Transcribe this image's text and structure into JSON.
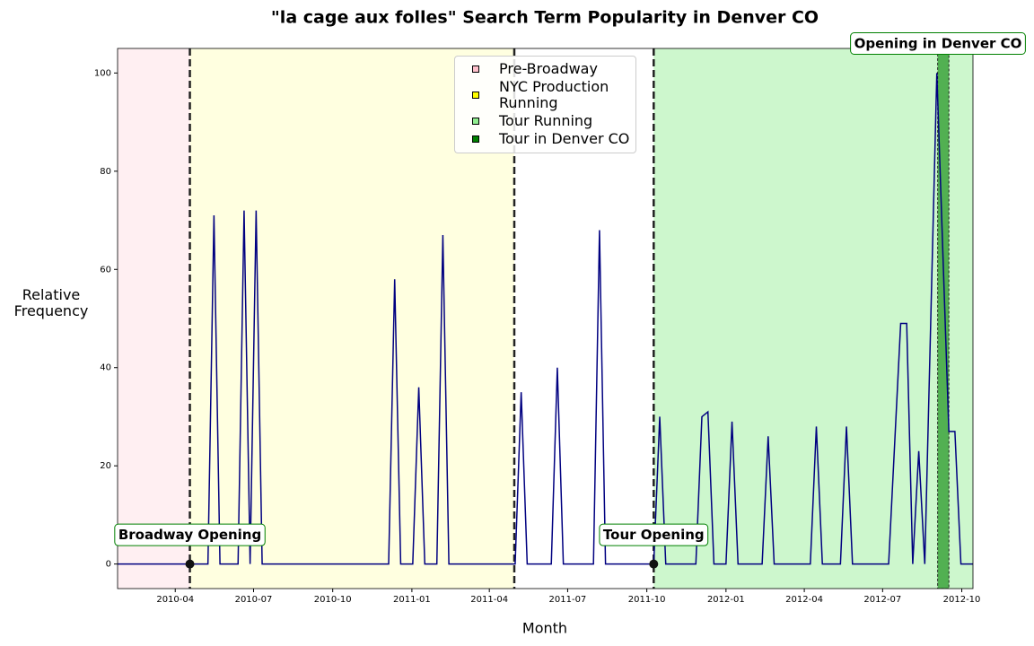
{
  "chart_data": {
    "type": "line",
    "title": "\"la cage aux folles\" Search Term Popularity in Denver CO",
    "x_label": "Month",
    "y_label": "Relative Frequency",
    "x": [
      "2010-01-24",
      "2010-05-09",
      "2010-05-16",
      "2010-05-23",
      "2010-06-13",
      "2010-06-20",
      "2010-06-27",
      "2010-07-04",
      "2010-07-11",
      "2010-12-05",
      "2010-12-12",
      "2010-12-19",
      "2011-01-02",
      "2011-01-09",
      "2011-01-16",
      "2011-01-30",
      "2011-02-06",
      "2011-02-13",
      "2011-05-01",
      "2011-05-08",
      "2011-05-15",
      "2011-06-12",
      "2011-06-19",
      "2011-06-26",
      "2011-07-31",
      "2011-08-07",
      "2011-08-14",
      "2011-10-09",
      "2011-10-16",
      "2011-10-23",
      "2011-11-27",
      "2011-12-04",
      "2011-12-11",
      "2011-12-18",
      "2012-01-01",
      "2012-01-08",
      "2012-01-15",
      "2012-02-12",
      "2012-02-19",
      "2012-02-26",
      "2012-04-08",
      "2012-04-15",
      "2012-04-22",
      "2012-05-13",
      "2012-05-20",
      "2012-05-27",
      "2012-07-08",
      "2012-07-22",
      "2012-07-29",
      "2012-08-05",
      "2012-08-12",
      "2012-08-19",
      "2012-09-02",
      "2012-09-16",
      "2012-09-23",
      "2012-09-30",
      "2012-10-14"
    ],
    "values": [
      0,
      0,
      71,
      0,
      0,
      72,
      0,
      72,
      0,
      0,
      58,
      0,
      0,
      36,
      0,
      0,
      67,
      0,
      0,
      35,
      0,
      0,
      40,
      0,
      0,
      68,
      0,
      0,
      30,
      0,
      0,
      30,
      31,
      0,
      0,
      29,
      0,
      0,
      26,
      0,
      0,
      28,
      0,
      0,
      28,
      0,
      0,
      49,
      49,
      0,
      23,
      0,
      100,
      27,
      27,
      0,
      0
    ],
    "color": "#000080",
    "xlim": [
      "2010-01-24",
      "2012-10-14"
    ],
    "xticks": [
      {
        "value": "2010-04-01",
        "label": "2010-04"
      },
      {
        "value": "2010-07-01",
        "label": "2010-07"
      },
      {
        "value": "2010-10-01",
        "label": "2010-10"
      },
      {
        "value": "2011-01-01",
        "label": "2011-01"
      },
      {
        "value": "2011-04-01",
        "label": "2011-04"
      },
      {
        "value": "2011-07-01",
        "label": "2011-07"
      },
      {
        "value": "2011-10-01",
        "label": "2011-10"
      },
      {
        "value": "2012-01-01",
        "label": "2012-01"
      },
      {
        "value": "2012-04-01",
        "label": "2012-04"
      },
      {
        "value": "2012-07-01",
        "label": "2012-07"
      },
      {
        "value": "2012-10-01",
        "label": "2012-10"
      }
    ],
    "ylim": [
      -5,
      105
    ],
    "yticks": [
      0,
      20,
      40,
      60,
      80,
      100
    ],
    "regions": [
      {
        "name": "Pre-Broadway",
        "color": "pink",
        "start": "2010-01-24",
        "end": "2010-04-18"
      },
      {
        "name": "NYC Production Running",
        "color": "yellow",
        "start": "2010-04-18",
        "end": "2011-04-30"
      },
      {
        "name": "Tour Running",
        "color": "lightgreen",
        "start": "2011-10-09",
        "end": "2012-10-14"
      },
      {
        "name": "Tour in Denver CO",
        "color": "green",
        "start": "2012-09-03",
        "end": "2012-09-16"
      }
    ],
    "vlines": [
      "2010-04-18",
      "2011-04-30",
      "2011-10-09"
    ],
    "annotations": [
      {
        "text": "Broadway Opening",
        "x": "2010-04-18",
        "y": 0
      },
      {
        "text": "Tour Opening",
        "x": "2011-10-09",
        "y": 0
      },
      {
        "text": "Opening in Denver CO",
        "x": "2012-09-09"
      }
    ]
  }
}
